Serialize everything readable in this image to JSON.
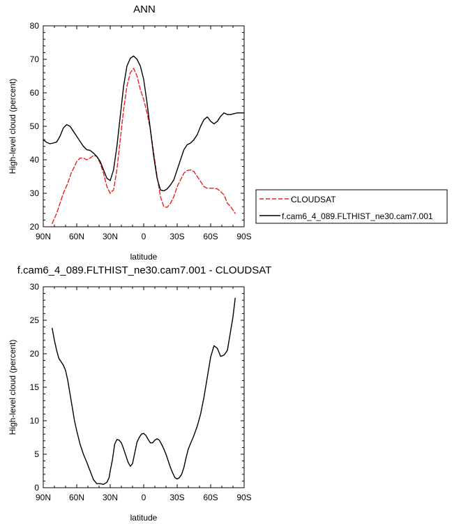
{
  "figure": {
    "legend": {
      "entries": [
        {
          "name": "CLOUDSAT",
          "color": "#e8211e",
          "dash": "dashed"
        },
        {
          "name": "f.cam6_4_089.FLTHIST_ne30.cam7.001",
          "color": "#000000",
          "dash": "solid"
        }
      ],
      "placement": "right of top panel"
    }
  },
  "chart_data": [
    {
      "type": "line",
      "title": "ANN",
      "xlabel": "latitude",
      "ylabel": "High-level cloud (percent)",
      "xlim": [
        90,
        -90
      ],
      "ylim": [
        20,
        80
      ],
      "x_ticks": [
        90,
        60,
        30,
        0,
        -30,
        -60,
        -90
      ],
      "x_tick_labels": [
        "90N",
        "60N",
        "30N",
        "0",
        "30S",
        "60S",
        "90S"
      ],
      "y_ticks": [
        20,
        30,
        40,
        50,
        60,
        70,
        80
      ],
      "y_tick_labels": [
        "20",
        "30",
        "40",
        "50",
        "60",
        "70",
        "80"
      ],
      "series": [
        {
          "name": "CLOUDSAT",
          "color": "#e8211e",
          "dash": "dashed",
          "x": [
            82,
            78,
            75,
            72,
            68,
            65,
            62,
            60,
            57,
            54,
            51,
            48,
            45,
            42,
            39,
            36,
            33,
            30,
            27,
            24,
            21,
            18,
            15,
            12,
            9,
            6,
            3,
            0,
            -3,
            -6,
            -9,
            -12,
            -15,
            -18,
            -21,
            -24,
            -27,
            -30,
            -33,
            -36,
            -39,
            -42,
            -45,
            -48,
            -51,
            -54,
            -57,
            -60,
            -63,
            -66,
            -69,
            -72,
            -75,
            -78,
            -80,
            -82
          ],
          "y": [
            21,
            24,
            27,
            30,
            33,
            36,
            38,
            39.5,
            40.5,
            40.5,
            40,
            40.5,
            41.3,
            41,
            39,
            36,
            32,
            30,
            31,
            37,
            46,
            55,
            62,
            66,
            67.3,
            65,
            61,
            58,
            54,
            49,
            42,
            35,
            29,
            26,
            25.8,
            27,
            29,
            32,
            34,
            36,
            36.8,
            37,
            36.5,
            35,
            33.5,
            32,
            31.5,
            31.5,
            31.5,
            31.3,
            30.5,
            29.5,
            27,
            26,
            25,
            24
          ]
        },
        {
          "name": "f.cam6_4_089.FLTHIST_ne30.cam7.001",
          "color": "#000000",
          "dash": "solid",
          "x": [
            90,
            87,
            84,
            81,
            78,
            75,
            72,
            69,
            66,
            63,
            60,
            57,
            54,
            51,
            48,
            45,
            42,
            39,
            36,
            33,
            30,
            27,
            24,
            21,
            18,
            15,
            12,
            9,
            6,
            3,
            0,
            -3,
            -6,
            -9,
            -12,
            -15,
            -18,
            -21,
            -24,
            -27,
            -30,
            -33,
            -36,
            -39,
            -42,
            -45,
            -48,
            -51,
            -54,
            -57,
            -60,
            -63,
            -66,
            -69,
            -72,
            -75,
            -78,
            -81,
            -84,
            -87,
            -90
          ],
          "y": [
            46,
            45.2,
            44.8,
            45,
            45.3,
            47,
            49.5,
            50.5,
            50,
            48.5,
            47,
            45.5,
            44,
            43,
            42.8,
            42,
            41,
            39.5,
            37,
            34.5,
            33.8,
            37,
            44,
            53,
            62,
            68,
            70.3,
            71,
            70,
            68,
            64,
            57,
            49,
            41,
            34.5,
            31,
            30.7,
            31.3,
            32.5,
            34,
            37,
            40,
            43,
            44.5,
            45,
            46,
            47.5,
            50,
            52,
            52.8,
            51.5,
            50.7,
            51.5,
            53,
            54,
            53.5,
            53.5,
            53.8,
            54,
            54,
            54
          ]
        }
      ]
    },
    {
      "type": "line",
      "title": "f.cam6_4_089.FLTHIST_ne30.cam7.001 - CLOUDSAT",
      "xlabel": "latitude",
      "ylabel": "High-level cloud (percent)",
      "xlim": [
        90,
        -90
      ],
      "ylim": [
        0,
        30
      ],
      "x_ticks": [
        90,
        60,
        30,
        0,
        -30,
        -60,
        -90
      ],
      "x_tick_labels": [
        "90N",
        "60N",
        "30N",
        "0",
        "30S",
        "60S",
        "90S"
      ],
      "y_ticks": [
        0,
        5,
        10,
        15,
        20,
        25,
        30
      ],
      "y_tick_labels": [
        "0",
        "5",
        "10",
        "15",
        "20",
        "25",
        "30"
      ],
      "series": [
        {
          "color": "#000000",
          "dash": "solid",
          "x": [
            82,
            80,
            78,
            76,
            74,
            72,
            70,
            68,
            66,
            64,
            62,
            60,
            57,
            54,
            51,
            48,
            45,
            42,
            39,
            36,
            33,
            31,
            30,
            28,
            26,
            24,
            22,
            20,
            18,
            16,
            14,
            12,
            10,
            8,
            6,
            4,
            2,
            0,
            -2,
            -4,
            -6,
            -8,
            -10,
            -12,
            -14,
            -16,
            -18,
            -20,
            -22,
            -24,
            -26,
            -28,
            -30,
            -32,
            -34,
            -36,
            -38,
            -40,
            -42,
            -45,
            -48,
            -51,
            -54,
            -57,
            -60,
            -63,
            -66,
            -69,
            -72,
            -75,
            -77,
            -80,
            -82
          ],
          "y": [
            23.8,
            22,
            20.5,
            19.3,
            18.8,
            18.3,
            17.5,
            16,
            14,
            12,
            10,
            8.5,
            6.5,
            5,
            3.8,
            2.5,
            1.2,
            0.6,
            0.6,
            0.5,
            0.8,
            1.5,
            2.5,
            4.2,
            6.5,
            7.2,
            7.1,
            6.7,
            5.8,
            4.8,
            3.8,
            3.2,
            3.6,
            5.2,
            6.8,
            7.5,
            8,
            8.1,
            7.8,
            7.2,
            6.7,
            6.7,
            7.1,
            7.3,
            7.1,
            6.5,
            5.8,
            5,
            4,
            3,
            2.2,
            1.5,
            1.3,
            1.5,
            2,
            3,
            4.5,
            5.8,
            6.6,
            7.8,
            9.2,
            11,
            13.5,
            16.5,
            19.5,
            21.2,
            20.8,
            19.6,
            19.8,
            20.5,
            22.5,
            25.5,
            28.3
          ]
        }
      ]
    }
  ]
}
